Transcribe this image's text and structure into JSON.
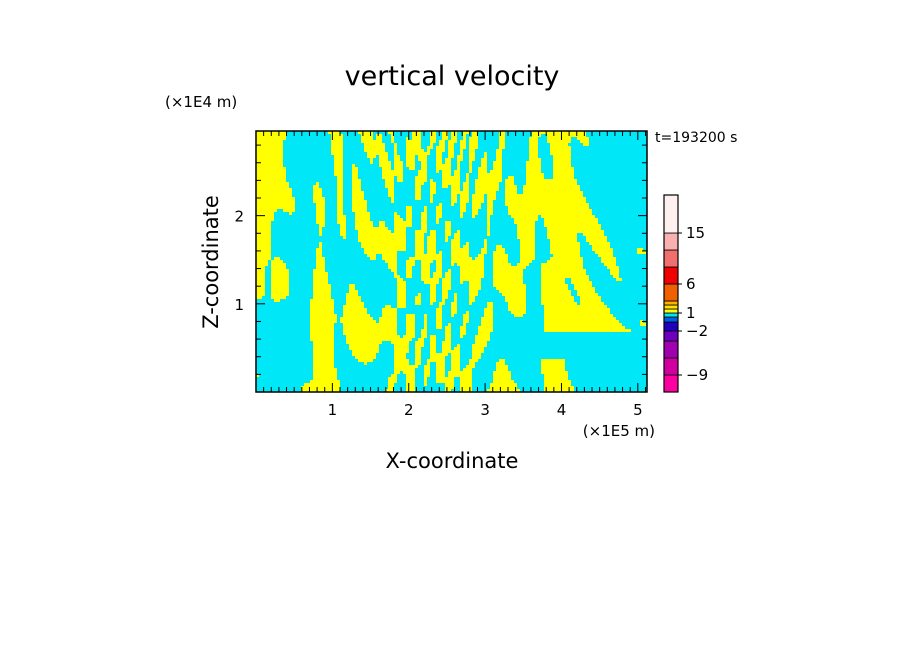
{
  "chart_data": {
    "type": "heatmap",
    "title": "vertical velocity",
    "xlabel": "X-coordinate",
    "ylabel": "Z-coordinate",
    "x_unit": "(×1E5 m)",
    "y_unit": "(×1E4 m)",
    "time_label": "t=193200 s",
    "xlim": [
      0,
      5.12
    ],
    "ylim": [
      0,
      2.96
    ],
    "x_ticks": [
      {
        "value": 1,
        "label": "1"
      },
      {
        "value": 2,
        "label": "2"
      },
      {
        "value": 3,
        "label": "3"
      },
      {
        "value": 4,
        "label": "4"
      },
      {
        "value": 5,
        "label": "5"
      }
    ],
    "y_ticks": [
      {
        "value": 1,
        "label": "1"
      },
      {
        "value": 2,
        "label": "2"
      }
    ],
    "field_colors": {
      "positive": "#ffff00",
      "negative": "#00e8f8"
    },
    "colorbar": {
      "levels": [
        -12,
        -9,
        -6,
        -4,
        -2,
        -1,
        0,
        1,
        2,
        3,
        4,
        6,
        9,
        12,
        15,
        20
      ],
      "colors": [
        "#ff00a0",
        "#d000a0",
        "#a000b0",
        "#7000c0",
        "#2000c0",
        "#0060e0",
        "#00e8f8",
        "#ffff00",
        "#ffe000",
        "#ffb000",
        "#f06000",
        "#f00000",
        "#f07070",
        "#f8b0b0",
        "#fff0f0"
      ],
      "tick_labels": [
        {
          "value": -9,
          "label": "−9"
        },
        {
          "value": -2,
          "label": "−2"
        },
        {
          "value": 1,
          "label": "1"
        },
        {
          "value": 6,
          "label": "6"
        },
        {
          "value": 15,
          "label": "15"
        }
      ]
    }
  }
}
